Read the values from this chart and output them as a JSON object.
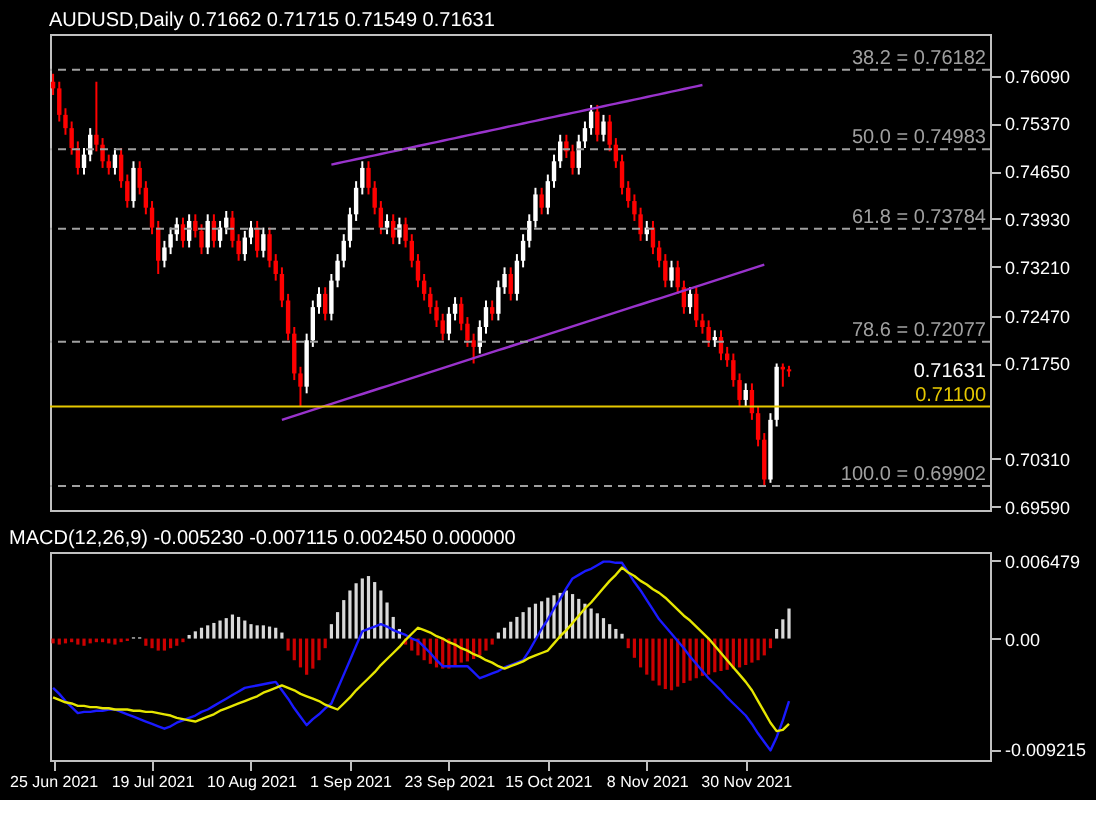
{
  "chart_data": [
    {
      "type": "candlestick",
      "title": "AUDUSD,Daily 0.71662 0.71715 0.71549 0.71631",
      "categories": [
        null,
        null,
        null,
        null,
        null,
        null,
        null,
        null,
        null,
        null,
        null,
        null,
        null,
        null,
        null,
        null,
        null,
        null,
        null,
        null,
        null,
        null,
        null,
        null,
        null,
        null,
        null,
        null,
        null,
        null,
        null,
        null,
        null,
        null,
        null,
        null,
        null,
        null,
        null,
        null,
        null,
        null,
        null,
        null,
        null,
        null,
        null,
        null,
        null,
        null,
        null,
        null,
        null,
        null,
        null,
        null,
        null,
        null,
        null,
        null,
        null,
        null,
        null,
        null,
        null,
        null,
        null,
        null,
        null,
        null,
        null,
        null,
        null,
        null,
        null,
        null,
        null,
        null,
        null,
        null,
        null,
        null,
        null,
        null,
        null,
        null,
        null,
        null,
        null,
        null,
        null,
        null,
        null,
        null,
        null,
        null,
        null,
        null,
        null,
        null,
        null,
        null,
        null,
        null,
        null,
        null,
        null,
        null,
        null,
        null,
        null,
        null,
        null,
        null,
        null,
        null,
        null,
        null,
        null,
        null,
        null,
        null,
        null,
        null,
        null,
        null,
        null,
        null,
        null,
        null,
        null,
        null,
        null,
        null,
        null,
        null,
        null,
        null,
        null,
        null,
        null,
        null,
        null,
        null,
        null,
        null,
        null,
        null,
        null,
        null,
        null,
        null
      ],
      "ohlc": [
        [
          0.76,
          0.7612,
          0.758,
          0.759
        ],
        [
          0.759,
          0.76,
          0.754,
          0.755
        ],
        [
          0.755,
          0.756,
          0.752,
          0.753
        ],
        [
          0.753,
          0.754,
          0.749,
          0.75
        ],
        [
          0.75,
          0.751,
          0.746,
          0.747
        ],
        [
          0.747,
          0.75,
          0.746,
          0.749
        ],
        [
          0.749,
          0.753,
          0.748,
          0.752
        ],
        [
          0.752,
          0.76,
          0.7495,
          0.7505
        ],
        [
          0.7505,
          0.7515,
          0.747,
          0.748
        ],
        [
          0.748,
          0.749,
          0.746,
          0.747
        ],
        [
          0.747,
          0.75,
          0.746,
          0.749
        ],
        [
          0.749,
          0.75,
          0.744,
          0.745
        ],
        [
          0.745,
          0.746,
          0.741,
          0.742
        ],
        [
          0.742,
          0.748,
          0.741,
          0.747
        ],
        [
          0.747,
          0.748,
          0.743,
          0.744
        ],
        [
          0.744,
          0.745,
          0.74,
          0.741
        ],
        [
          0.741,
          0.742,
          0.737,
          0.738
        ],
        [
          0.738,
          0.739,
          0.731,
          0.733
        ],
        [
          0.733,
          0.736,
          0.732,
          0.735
        ],
        [
          0.735,
          0.738,
          0.734,
          0.737
        ],
        [
          0.737,
          0.7395,
          0.736,
          0.7385
        ],
        [
          0.7385,
          0.7395,
          0.735,
          0.736
        ],
        [
          0.736,
          0.74,
          0.735,
          0.739
        ],
        [
          0.739,
          0.74,
          0.7365,
          0.7375
        ],
        [
          0.7375,
          0.7385,
          0.734,
          0.735
        ],
        [
          0.735,
          0.74,
          0.734,
          0.739
        ],
        [
          0.739,
          0.74,
          0.735,
          0.736
        ],
        [
          0.736,
          0.739,
          0.735,
          0.738
        ],
        [
          0.738,
          0.7405,
          0.737,
          0.7395
        ],
        [
          0.7395,
          0.7405,
          0.735,
          0.736
        ],
        [
          0.736,
          0.737,
          0.733,
          0.734
        ],
        [
          0.734,
          0.7375,
          0.733,
          0.7365
        ],
        [
          0.7365,
          0.739,
          0.7355,
          0.738
        ],
        [
          0.738,
          0.739,
          0.7335,
          0.7345
        ],
        [
          0.7345,
          0.738,
          0.7335,
          0.737
        ],
        [
          0.737,
          0.738,
          0.732,
          0.733
        ],
        [
          0.733,
          0.734,
          0.73,
          0.731
        ],
        [
          0.731,
          0.732,
          0.726,
          0.727
        ],
        [
          0.727,
          0.728,
          0.721,
          0.722
        ],
        [
          0.722,
          0.723,
          0.715,
          0.716
        ],
        [
          0.716,
          0.717,
          0.711,
          0.714
        ],
        [
          0.714,
          0.722,
          0.713,
          0.721
        ],
        [
          0.721,
          0.727,
          0.72,
          0.726
        ],
        [
          0.726,
          0.729,
          0.725,
          0.728
        ],
        [
          0.728,
          0.729,
          0.724,
          0.725
        ],
        [
          0.725,
          0.731,
          0.724,
          0.73
        ],
        [
          0.73,
          0.734,
          0.729,
          0.733
        ],
        [
          0.733,
          0.737,
          0.732,
          0.736
        ],
        [
          0.736,
          0.741,
          0.735,
          0.74
        ],
        [
          0.74,
          0.745,
          0.739,
          0.744
        ],
        [
          0.744,
          0.748,
          0.743,
          0.747
        ],
        [
          0.747,
          0.748,
          0.743,
          0.744
        ],
        [
          0.744,
          0.745,
          0.74,
          0.741
        ],
        [
          0.741,
          0.742,
          0.737,
          0.738
        ],
        [
          0.738,
          0.74,
          0.737,
          0.739
        ],
        [
          0.739,
          0.74,
          0.7355,
          0.7365
        ],
        [
          0.7365,
          0.7395,
          0.7355,
          0.7385
        ],
        [
          0.7385,
          0.7395,
          0.735,
          0.736
        ],
        [
          0.736,
          0.737,
          0.732,
          0.733
        ],
        [
          0.733,
          0.734,
          0.729,
          0.73
        ],
        [
          0.73,
          0.731,
          0.727,
          0.728
        ],
        [
          0.728,
          0.729,
          0.725,
          0.726
        ],
        [
          0.726,
          0.727,
          0.723,
          0.724
        ],
        [
          0.724,
          0.725,
          0.721,
          0.722
        ],
        [
          0.722,
          0.726,
          0.721,
          0.725
        ],
        [
          0.725,
          0.7275,
          0.724,
          0.7265
        ],
        [
          0.7265,
          0.7275,
          0.7225,
          0.7235
        ],
        [
          0.7235,
          0.7245,
          0.72,
          0.721
        ],
        [
          0.721,
          0.722,
          0.7175,
          0.72
        ],
        [
          0.72,
          0.724,
          0.719,
          0.723
        ],
        [
          0.723,
          0.727,
          0.722,
          0.726
        ],
        [
          0.726,
          0.727,
          0.724,
          0.725
        ],
        [
          0.725,
          0.73,
          0.724,
          0.729
        ],
        [
          0.729,
          0.732,
          0.728,
          0.731
        ],
        [
          0.731,
          0.732,
          0.727,
          0.728
        ],
        [
          0.728,
          0.734,
          0.727,
          0.733
        ],
        [
          0.733,
          0.737,
          0.732,
          0.736
        ],
        [
          0.736,
          0.74,
          0.735,
          0.739
        ],
        [
          0.739,
          0.744,
          0.738,
          0.743
        ],
        [
          0.743,
          0.744,
          0.74,
          0.741
        ],
        [
          0.741,
          0.746,
          0.74,
          0.745
        ],
        [
          0.745,
          0.749,
          0.744,
          0.748
        ],
        [
          0.748,
          0.752,
          0.747,
          0.751
        ],
        [
          0.751,
          0.752,
          0.7485,
          0.7495
        ],
        [
          0.7495,
          0.7505,
          0.746,
          0.747
        ],
        [
          0.747,
          0.752,
          0.746,
          0.751
        ],
        [
          0.751,
          0.754,
          0.75,
          0.753
        ],
        [
          0.753,
          0.7565,
          0.752,
          0.7555
        ],
        [
          0.7555,
          0.7565,
          0.751,
          0.752
        ],
        [
          0.752,
          0.755,
          0.751,
          0.754
        ],
        [
          0.754,
          0.755,
          0.7495,
          0.7505
        ],
        [
          0.7505,
          0.7515,
          0.747,
          0.748
        ],
        [
          0.748,
          0.749,
          0.743,
          0.744
        ],
        [
          0.744,
          0.745,
          0.741,
          0.742
        ],
        [
          0.742,
          0.743,
          0.739,
          0.74
        ],
        [
          0.74,
          0.741,
          0.736,
          0.737
        ],
        [
          0.737,
          0.739,
          0.736,
          0.738
        ],
        [
          0.738,
          0.739,
          0.734,
          0.735
        ],
        [
          0.735,
          0.736,
          0.732,
          0.733
        ],
        [
          0.733,
          0.734,
          0.729,
          0.73
        ],
        [
          0.73,
          0.733,
          0.729,
          0.732
        ],
        [
          0.732,
          0.733,
          0.728,
          0.729
        ],
        [
          0.729,
          0.73,
          0.725,
          0.726
        ],
        [
          0.726,
          0.729,
          0.725,
          0.728
        ],
        [
          0.728,
          0.729,
          0.723,
          0.724
        ],
        [
          0.724,
          0.725,
          0.722,
          0.723
        ],
        [
          0.723,
          0.724,
          0.72,
          0.721
        ],
        [
          0.721,
          0.7225,
          0.72,
          0.7215
        ],
        [
          0.7215,
          0.7225,
          0.718,
          0.719
        ],
        [
          0.719,
          0.72,
          0.717,
          0.718
        ],
        [
          0.718,
          0.719,
          0.714,
          0.715
        ],
        [
          0.715,
          0.716,
          0.711,
          0.712
        ],
        [
          0.712,
          0.7145,
          0.711,
          0.7135
        ],
        [
          0.7135,
          0.7145,
          0.709,
          0.71
        ],
        [
          0.71,
          0.711,
          0.705,
          0.706
        ],
        [
          0.706,
          0.707,
          0.699,
          0.7
        ],
        [
          0.7,
          0.71,
          0.6995,
          0.709
        ],
        [
          0.709,
          0.7175,
          0.708,
          0.717
        ],
        [
          0.717,
          0.7175,
          0.714,
          0.7166
        ],
        [
          0.71662,
          0.71715,
          0.71549,
          0.71631
        ],
        null,
        null,
        null,
        null,
        null,
        null,
        null,
        null,
        null,
        null,
        null,
        null,
        null,
        null,
        null,
        null,
        null,
        null,
        null,
        null,
        null,
        null,
        null,
        null,
        null,
        null,
        null,
        null,
        null,
        null,
        null,
        null
      ],
      "colors": [
        "#ff0000",
        "#ff0000",
        "#ff0000",
        "#ff0000",
        "#ff0000",
        "#ffffff",
        "#ffffff",
        "#ff0000",
        "#ff0000",
        "#ff0000",
        "#ffffff",
        "#ff0000",
        "#ff0000",
        "#ffffff",
        "#ff0000",
        "#ff0000",
        "#ff0000",
        "#ff0000",
        "#ffffff",
        "#ffffff",
        "#ffffff",
        "#ff0000",
        "#ffffff",
        "#ff0000",
        "#ff0000",
        "#ffffff",
        "#ff0000",
        "#ffffff",
        "#ffffff",
        "#ff0000",
        "#ff0000",
        "#ffffff",
        "#ffffff",
        "#ff0000",
        "#ffffff",
        "#ff0000",
        "#ff0000",
        "#ff0000",
        "#ff0000",
        "#ff0000",
        "#ff0000",
        "#ffffff",
        "#ffffff",
        "#ffffff",
        "#ff0000",
        "#ffffff",
        "#ffffff",
        "#ffffff",
        "#ffffff",
        "#ffffff",
        "#ffffff",
        "#ff0000",
        "#ff0000",
        "#ff0000",
        "#ffffff",
        "#ff0000",
        "#ffffff",
        "#ff0000",
        "#ff0000",
        "#ff0000",
        "#ff0000",
        "#ff0000",
        "#ff0000",
        "#ff0000",
        "#ffffff",
        "#ffffff",
        "#ff0000",
        "#ff0000",
        "#ff0000",
        "#ffffff",
        "#ffffff",
        "#ff0000",
        "#ffffff",
        "#ffffff",
        "#ff0000",
        "#ffffff",
        "#ffffff",
        "#ffffff",
        "#ffffff",
        "#ff0000",
        "#ffffff",
        "#ffffff",
        "#ffffff",
        "#ff0000",
        "#ff0000",
        "#ffffff",
        "#ffffff",
        "#ffffff",
        "#ff0000",
        "#ffffff",
        "#ff0000",
        "#ff0000",
        "#ff0000",
        "#ff0000",
        "#ff0000",
        "#ff0000",
        "#ffffff",
        "#ff0000",
        "#ff0000",
        "#ff0000",
        "#ffffff",
        "#ff0000",
        "#ff0000",
        "#ffffff",
        "#ff0000",
        "#ff0000",
        "#ff0000",
        "#ffffff",
        "#ff0000",
        "#ff0000",
        "#ff0000",
        "#ff0000",
        "#ffffff",
        "#ff0000",
        "#ff0000",
        "#ff0000",
        "#ffffff",
        "#ffffff",
        "#ff0000",
        "#ff0000",
        null,
        null,
        null,
        null,
        null,
        null,
        null,
        null,
        null,
        null,
        null,
        null,
        null,
        null,
        null,
        null,
        null,
        null,
        null,
        null,
        null,
        null,
        null,
        null,
        null,
        null,
        null,
        null,
        null,
        null,
        null,
        null
      ],
      "series": [
        {
          "type": "line",
          "color": "#9933cc",
          "values": [
            null,
            null,
            null,
            null,
            null,
            null,
            null,
            null,
            null,
            null,
            null,
            null,
            null,
            null,
            null,
            null,
            null,
            null,
            null,
            null,
            null,
            null,
            null,
            null,
            null,
            null,
            null,
            null,
            null,
            null,
            null,
            null,
            null,
            null,
            null,
            null,
            null,
            null,
            null,
            null,
            null,
            null,
            null,
            null,
            null,
            0.7475,
            0.7477,
            0.7479,
            0.7481,
            0.7483,
            0.7485,
            0.7487,
            0.7489,
            0.7491,
            0.7493,
            0.7495,
            0.7497,
            0.7499,
            0.7501,
            0.7503,
            0.7505,
            0.7507,
            0.7509,
            0.7511,
            0.7513,
            0.7515,
            0.7517,
            0.7519,
            0.7521,
            0.7523,
            0.7525,
            0.7527,
            0.7529,
            0.7531,
            0.7533,
            0.7535,
            0.7537,
            0.7539,
            0.7541,
            0.7543,
            0.7545,
            0.7547,
            0.7549,
            0.7551,
            0.7553,
            0.7555,
            0.7557,
            0.7559,
            0.7561,
            0.7563,
            0.7565,
            0.7567,
            0.7569,
            0.7571,
            0.7573,
            0.7575,
            0.7577,
            0.7579,
            0.7581,
            0.7583,
            0.7585,
            0.7587,
            0.7589,
            0.7591,
            0.7593,
            0.7595,
            null,
            null,
            null,
            null,
            null,
            null,
            null,
            null,
            null,
            null,
            null,
            null,
            null,
            null,
            null,
            null,
            null,
            null,
            null,
            null,
            null,
            null,
            null,
            null,
            null,
            null,
            null,
            null,
            null,
            null,
            null,
            null,
            null,
            null,
            null,
            null,
            null,
            null,
            null,
            null,
            null,
            null,
            null,
            null,
            null,
            null
          ]
        },
        {
          "type": "line",
          "color": "#9933cc",
          "values": [
            null,
            null,
            null,
            null,
            null,
            null,
            null,
            null,
            null,
            null,
            null,
            null,
            null,
            null,
            null,
            null,
            null,
            null,
            null,
            null,
            null,
            null,
            null,
            null,
            null,
            null,
            null,
            null,
            null,
            null,
            null,
            null,
            null,
            null,
            null,
            null,
            null,
            0.709,
            0.7093,
            0.7096,
            0.7099,
            0.7102,
            0.7105,
            0.7108,
            0.7111,
            0.7114,
            0.7117,
            0.712,
            0.7123,
            0.7126,
            0.7129,
            0.7132,
            0.7135,
            0.7138,
            0.7141,
            0.7144,
            0.7147,
            0.715,
            0.7153,
            0.7156,
            0.7159,
            0.7162,
            0.7165,
            0.7168,
            0.7171,
            0.7174,
            0.7177,
            0.718,
            0.7183,
            0.7186,
            0.7189,
            0.7192,
            0.7195,
            0.7198,
            0.7201,
            0.7204,
            0.7207,
            0.721,
            0.7213,
            0.7216,
            0.7219,
            0.7222,
            0.7225,
            0.7228,
            0.7231,
            0.7234,
            0.7237,
            0.724,
            0.7243,
            0.7246,
            0.7249,
            0.7252,
            0.7255,
            0.7258,
            0.7261,
            0.7264,
            0.7267,
            0.727,
            0.7273,
            0.7276,
            0.7279,
            0.7282,
            0.7285,
            0.7288,
            0.7291,
            0.7294,
            0.7297,
            0.73,
            0.7303,
            0.7306,
            0.7309,
            0.7312,
            0.7315,
            0.7318,
            0.7321,
            0.7324,
            null,
            null,
            null,
            null,
            null,
            null,
            null,
            null,
            null,
            null,
            null,
            null,
            null,
            null,
            null,
            null,
            null,
            null,
            null,
            null,
            null,
            null,
            null,
            null,
            null,
            null,
            null,
            null,
            null,
            null,
            null,
            null,
            null,
            null,
            null,
            null
          ]
        }
      ],
      "ylim": [
        0.6954,
        0.7672
      ],
      "yticks": [
        {
          "value": 0.7609,
          "label": "0.76090"
        },
        {
          "value": 0.7537,
          "label": "0.75370"
        },
        {
          "value": 0.7465,
          "label": "0.74650"
        },
        {
          "value": 0.7393,
          "label": "0.73930"
        },
        {
          "value": 0.7321,
          "label": "0.73210"
        },
        {
          "value": 0.7247,
          "label": "0.72470"
        },
        {
          "value": 0.7175,
          "label": "0.71750"
        },
        {
          "value": 0.7031,
          "label": "0.70310"
        },
        {
          "value": 0.6959,
          "label": "0.69590"
        }
      ],
      "tick_labels": "y",
      "ref_lines": [
        {
          "axis": "y",
          "value": 0.76182,
          "label": "38.2 = 0.76182",
          "color": "#a0a0a0",
          "line_style": "dashed"
        },
        {
          "axis": "y",
          "value": 0.74983,
          "label": "50.0 = 0.74983",
          "color": "#a0a0a0",
          "line_style": "dashed"
        },
        {
          "axis": "y",
          "value": 0.73784,
          "label": "61.8 = 0.73784",
          "color": "#a0a0a0",
          "line_style": "dashed"
        },
        {
          "axis": "y",
          "value": 0.72077,
          "label": "78.6 = 0.72077",
          "color": "#a0a0a0",
          "line_style": "dashed"
        },
        {
          "axis": "y",
          "value": 0.69902,
          "label": "100.0 = 0.69902",
          "color": "#a0a0a0",
          "line_style": "dashed"
        },
        {
          "axis": "y",
          "value": 0.711,
          "label": "0.71100",
          "color": "#e6c800",
          "line_style": "solid"
        }
      ],
      "annotations": [
        "0.71631"
      ]
    },
    {
      "type": "bar",
      "title": "MACD(12,26,9) -0.005230 -0.007115 0.002450 0.000000",
      "categories": [
        "25 Jun 2021",
        null,
        null,
        null,
        null,
        null,
        null,
        null,
        null,
        null,
        null,
        null,
        null,
        null,
        null,
        null,
        "19 Jul 2021",
        null,
        null,
        null,
        null,
        null,
        null,
        null,
        null,
        null,
        null,
        null,
        null,
        null,
        null,
        null,
        "10 Aug 2021",
        null,
        null,
        null,
        null,
        null,
        null,
        null,
        null,
        null,
        null,
        null,
        null,
        null,
        null,
        null,
        "1 Sep 2021",
        null,
        null,
        null,
        null,
        null,
        null,
        null,
        null,
        null,
        null,
        null,
        null,
        null,
        null,
        null,
        "23 Sep 2021",
        null,
        null,
        null,
        null,
        null,
        null,
        null,
        null,
        null,
        null,
        null,
        null,
        null,
        null,
        null,
        "15 Oct 2021",
        null,
        null,
        null,
        null,
        null,
        null,
        null,
        null,
        null,
        null,
        null,
        null,
        null,
        null,
        null,
        "8 Nov 2021",
        null,
        null,
        null,
        null,
        null,
        null,
        null,
        null,
        null,
        null,
        null,
        null,
        null,
        null,
        null,
        "30 Nov 2021",
        null,
        null,
        null,
        null,
        null,
        null,
        null,
        null,
        null,
        null,
        null,
        null,
        null,
        null,
        null,
        null,
        null,
        null,
        null,
        null,
        null,
        null,
        null,
        null,
        null,
        null,
        null,
        null,
        null,
        null,
        null,
        null,
        null,
        null,
        null,
        null,
        null,
        null,
        null
      ],
      "series": [
        {
          "type": "bar",
          "values": [
            -0.0004,
            -0.0005,
            -0.0004,
            -0.0003,
            -0.0005,
            -0.0006,
            -0.0004,
            -0.0003,
            -0.0003,
            -0.0004,
            -0.0005,
            -0.0003,
            -0.0002,
            0.0001,
            0.0001,
            -0.0006,
            -0.0008,
            -0.001,
            -0.001,
            -0.0008,
            -0.0006,
            -0.0003,
            0.0003,
            0.0006,
            0.0009,
            0.0011,
            0.0013,
            0.0015,
            0.0017,
            0.002,
            0.0018,
            0.0015,
            0.0012,
            0.0011,
            0.0011,
            0.001,
            0.0009,
            0.0005,
            -0.001,
            -0.0018,
            -0.0024,
            -0.003,
            -0.0025,
            -0.0018,
            -0.0008,
            0.0012,
            0.0022,
            0.0032,
            0.004,
            0.0046,
            0.005,
            0.0052,
            0.0047,
            0.004,
            0.003,
            0.0018,
            0.0008,
            -0.0005,
            -0.001,
            -0.0014,
            -0.0018,
            -0.0021,
            -0.0024,
            -0.0025,
            -0.0025,
            -0.0022,
            -0.002,
            -0.0019,
            -0.0017,
            -0.0014,
            -0.001,
            -0.0005,
            0.0005,
            0.0009,
            0.0014,
            0.0018,
            0.0022,
            0.0026,
            0.0029,
            0.0031,
            0.0034,
            0.0036,
            0.0038,
            0.004,
            0.0037,
            0.0033,
            0.0029,
            0.0025,
            0.0021,
            0.0017,
            0.0012,
            0.0008,
            0.0004,
            -0.0008,
            -0.0016,
            -0.0024,
            -0.003,
            -0.0035,
            -0.0039,
            -0.0042,
            -0.0043,
            -0.004,
            -0.0037,
            -0.0035,
            -0.0033,
            -0.0031,
            -0.003,
            -0.0028,
            -0.0027,
            -0.0026,
            -0.0025,
            -0.0024,
            -0.0022,
            -0.002,
            -0.0018,
            -0.0014,
            -0.0008,
            0.0008,
            0.0016,
            0.0025,
            null,
            null,
            null,
            null,
            null,
            null,
            null,
            null,
            null,
            null,
            null,
            null,
            null,
            null,
            null,
            null,
            null,
            null,
            null,
            null,
            null,
            null,
            null,
            null,
            null,
            null,
            null,
            null,
            null,
            null,
            null,
            null
          ],
          "colors": [
            "#cc0000",
            "#cc0000",
            "#cc0000",
            "#cc0000",
            "#cc0000",
            "#cc0000",
            "#cc0000",
            "#cc0000",
            "#cc0000",
            "#cc0000",
            "#cc0000",
            "#cc0000",
            "#cc0000",
            "#d9d9d9",
            "#d9d9d9",
            "#cc0000",
            "#cc0000",
            "#cc0000",
            "#cc0000",
            "#cc0000",
            "#cc0000",
            "#cc0000",
            "#d9d9d9",
            "#d9d9d9",
            "#d9d9d9",
            "#d9d9d9",
            "#d9d9d9",
            "#d9d9d9",
            "#d9d9d9",
            "#d9d9d9",
            "#d9d9d9",
            "#d9d9d9",
            "#d9d9d9",
            "#d9d9d9",
            "#d9d9d9",
            "#d9d9d9",
            "#d9d9d9",
            "#d9d9d9",
            "#cc0000",
            "#cc0000",
            "#cc0000",
            "#cc0000",
            "#cc0000",
            "#cc0000",
            "#cc0000",
            "#d9d9d9",
            "#d9d9d9",
            "#d9d9d9",
            "#d9d9d9",
            "#d9d9d9",
            "#d9d9d9",
            "#d9d9d9",
            "#d9d9d9",
            "#d9d9d9",
            "#d9d9d9",
            "#d9d9d9",
            "#d9d9d9",
            "#cc0000",
            "#cc0000",
            "#cc0000",
            "#cc0000",
            "#cc0000",
            "#cc0000",
            "#cc0000",
            "#cc0000",
            "#cc0000",
            "#cc0000",
            "#cc0000",
            "#cc0000",
            "#cc0000",
            "#cc0000",
            "#cc0000",
            "#d9d9d9",
            "#d9d9d9",
            "#d9d9d9",
            "#d9d9d9",
            "#d9d9d9",
            "#d9d9d9",
            "#d9d9d9",
            "#d9d9d9",
            "#d9d9d9",
            "#d9d9d9",
            "#d9d9d9",
            "#d9d9d9",
            "#d9d9d9",
            "#d9d9d9",
            "#d9d9d9",
            "#d9d9d9",
            "#d9d9d9",
            "#d9d9d9",
            "#d9d9d9",
            "#d9d9d9",
            "#d9d9d9",
            "#cc0000",
            "#cc0000",
            "#cc0000",
            "#cc0000",
            "#cc0000",
            "#cc0000",
            "#cc0000",
            "#cc0000",
            "#cc0000",
            "#cc0000",
            "#cc0000",
            "#cc0000",
            "#cc0000",
            "#cc0000",
            "#cc0000",
            "#cc0000",
            "#cc0000",
            "#cc0000",
            "#cc0000",
            "#cc0000",
            "#cc0000",
            "#cc0000",
            "#cc0000",
            "#cc0000",
            "#d9d9d9",
            "#d9d9d9",
            "#d9d9d9",
            null,
            null,
            null,
            null,
            null,
            null,
            null,
            null,
            null,
            null,
            null,
            null,
            null,
            null,
            null,
            null,
            null,
            null,
            null,
            null,
            null,
            null,
            null,
            null,
            null,
            null,
            null,
            null,
            null,
            null,
            null,
            null
          ]
        },
        {
          "type": "line",
          "color": "#1a1aff",
          "values": [
            -0.0041,
            -0.0046,
            -0.0052,
            -0.0057,
            -0.0062,
            -0.0061,
            -0.0061,
            -0.006,
            -0.006,
            -0.0059,
            -0.0059,
            -0.0061,
            -0.0063,
            -0.0065,
            -0.0067,
            -0.0069,
            -0.0071,
            -0.0073,
            -0.0075,
            -0.0073,
            -0.007,
            -0.0068,
            -0.0066,
            -0.0064,
            -0.0061,
            -0.0059,
            -0.0056,
            -0.0053,
            -0.005,
            -0.0047,
            -0.0044,
            -0.0041,
            -0.004,
            -0.0039,
            -0.0038,
            -0.0037,
            -0.0036,
            -0.0043,
            -0.005,
            -0.0058,
            -0.0065,
            -0.0072,
            -0.0067,
            -0.0063,
            -0.0058,
            -0.0054,
            -0.0042,
            -0.003,
            -0.0018,
            -0.0006,
            0.0006,
            0.0008,
            0.001,
            0.0012,
            0.001,
            0.0007,
            0.0005,
            0.0003,
            0.0,
            -0.0002,
            -0.0007,
            -0.0012,
            -0.0018,
            -0.0023,
            -0.0023,
            -0.0023,
            -0.0023,
            -0.0023,
            -0.0028,
            -0.0033,
            -0.0031,
            -0.0029,
            -0.0027,
            -0.0024,
            -0.0022,
            -0.002,
            -0.0018,
            -0.001,
            -0.0001,
            0.0008,
            0.0016,
            0.0025,
            0.0033,
            0.0042,
            0.005,
            0.0053,
            0.0056,
            0.0058,
            0.0061,
            0.0064,
            0.0064,
            0.0063,
            0.0063,
            0.0055,
            0.0047,
            0.004,
            0.0032,
            0.0024,
            0.0016,
            0.001,
            0.0004,
            -0.0002,
            -0.0008,
            -0.0015,
            -0.0021,
            -0.0027,
            -0.0033,
            -0.0038,
            -0.0043,
            -0.0049,
            -0.0054,
            -0.0059,
            -0.0064,
            -0.0071,
            -0.0079,
            -0.0086,
            -0.0093,
            -0.0082,
            -0.0068,
            -0.0052,
            null,
            null,
            null,
            null,
            null,
            null,
            null,
            null,
            null,
            null,
            null,
            null,
            null,
            null,
            null,
            null,
            null,
            null,
            null,
            null,
            null,
            null,
            null,
            null,
            null,
            null,
            null,
            null,
            null,
            null,
            null,
            null
          ]
        },
        {
          "type": "line",
          "color": "#e6e600",
          "values": [
            -0.0049,
            -0.0051,
            -0.0053,
            -0.0054,
            -0.0056,
            -0.0056,
            -0.0057,
            -0.0057,
            -0.0058,
            -0.0058,
            -0.0059,
            -0.0059,
            -0.0059,
            -0.006,
            -0.006,
            -0.0061,
            -0.0061,
            -0.0062,
            -0.0063,
            -0.0064,
            -0.0066,
            -0.0067,
            -0.0068,
            -0.0069,
            -0.0067,
            -0.0065,
            -0.0063,
            -0.006,
            -0.0058,
            -0.0056,
            -0.0054,
            -0.0052,
            -0.005,
            -0.0048,
            -0.0045,
            -0.0043,
            -0.0041,
            -0.0039,
            -0.0041,
            -0.0043,
            -0.0046,
            -0.0048,
            -0.005,
            -0.0052,
            -0.0055,
            -0.0057,
            -0.0059,
            -0.0054,
            -0.0049,
            -0.0043,
            -0.0038,
            -0.0033,
            -0.0028,
            -0.0022,
            -0.0017,
            -0.0012,
            -0.0007,
            -0.0001,
            0.0004,
            0.0009,
            0.0007,
            0.0005,
            0.0002,
            0.0,
            -0.0003,
            -0.0005,
            -0.0008,
            -0.001,
            -0.0013,
            -0.0015,
            -0.0018,
            -0.002,
            -0.0023,
            -0.0025,
            -0.0023,
            -0.0021,
            -0.0019,
            -0.0016,
            -0.0014,
            -0.0012,
            -0.001,
            -0.0004,
            0.0002,
            0.0007,
            0.0013,
            0.0019,
            0.0025,
            0.003,
            0.0036,
            0.0042,
            0.0048,
            0.0053,
            0.0059,
            0.0055,
            0.0052,
            0.0048,
            0.0045,
            0.0041,
            0.0038,
            0.0034,
            0.0029,
            0.0024,
            0.0019,
            0.0015,
            0.001,
            0.0005,
            0.0,
            -0.0006,
            -0.0012,
            -0.0018,
            -0.0024,
            -0.003,
            -0.0036,
            -0.0043,
            -0.0052,
            -0.0061,
            -0.007,
            -0.0077,
            -0.0076,
            -0.0071,
            null,
            null,
            null,
            null,
            null,
            null,
            null,
            null,
            null,
            null,
            null,
            null,
            null,
            null,
            null,
            null,
            null,
            null,
            null,
            null,
            null,
            null,
            null,
            null,
            null,
            null,
            null,
            null,
            null,
            null,
            null,
            null
          ]
        }
      ],
      "ylim": [
        -0.0101,
        0.0072
      ],
      "yticks": [
        0.006479,
        {
          "value": 0,
          "label": "0.00"
        },
        -0.009215
      ]
    }
  ]
}
